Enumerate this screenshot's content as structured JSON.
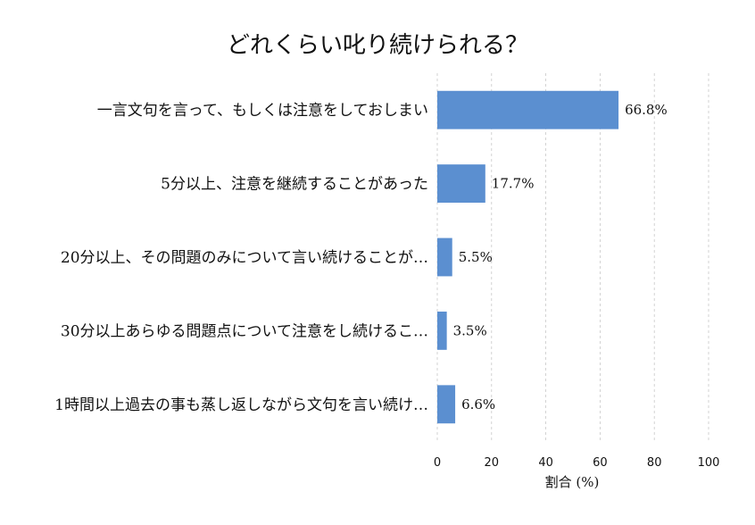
{
  "chart_data": {
    "type": "bar",
    "orientation": "horizontal",
    "title": "どれくらい叱り続けられる？",
    "categories": [
      "一言文句を言って、もしくは注意をしておしまい",
      "5分以上、注意を継続することがあった",
      "20分以上、その問題のみについて言い続けることが…",
      "30分以上あらゆる問題点について注意をし続けるこ…",
      "1時間以上過去の事も蒸し返しながら文句を言い続け…"
    ],
    "values": [
      66.8,
      17.7,
      5.5,
      3.5,
      6.6
    ],
    "value_labels": [
      "66.8%",
      "17.7%",
      "5.5%",
      "3.5%",
      "6.6%"
    ],
    "xlabel": "割合 (%)",
    "xlim": [
      0,
      100
    ],
    "xticks": [
      0,
      20,
      40,
      60,
      80,
      100
    ],
    "grid": true,
    "bar_color": "#5b8fd0",
    "grid_color": "#c8c8c8"
  }
}
